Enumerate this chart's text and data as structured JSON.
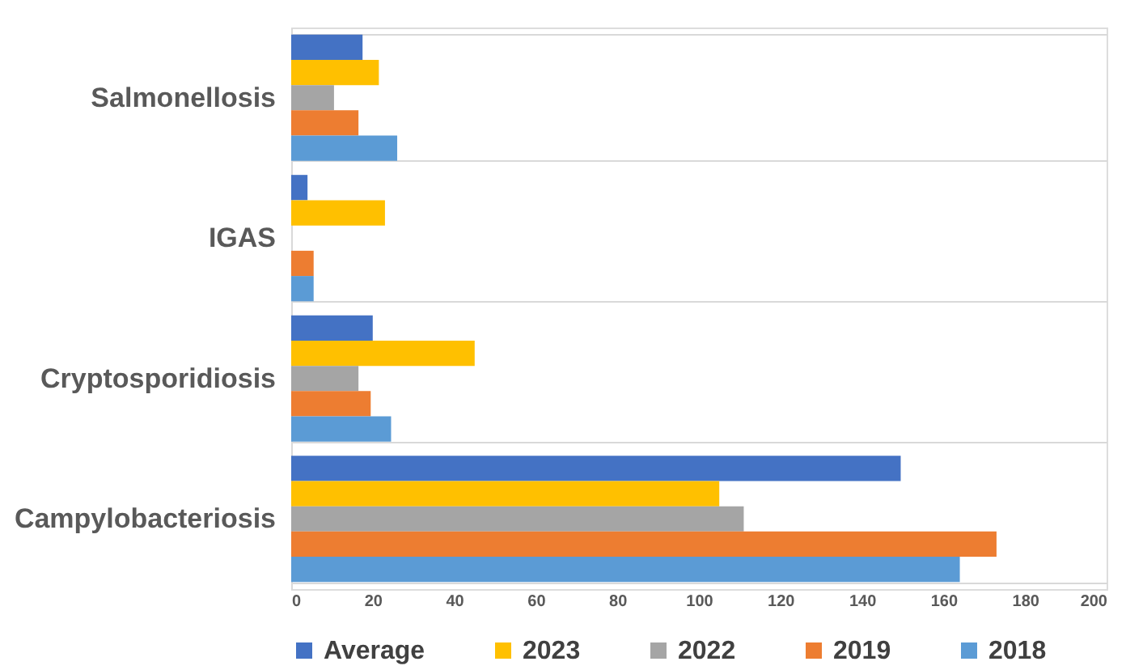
{
  "chart_data": {
    "type": "bar",
    "orientation": "horizontal",
    "categories": [
      "Salmonellosis",
      "IGAS",
      "Cryptosporidiosis",
      "Campylobacteriosis"
    ],
    "series": [
      {
        "name": "Average",
        "color": "#4472c4",
        "values": [
          17.5,
          4,
          20,
          149.5
        ]
      },
      {
        "name": "2023",
        "color": "#ffc000",
        "values": [
          21.5,
          23,
          45,
          105
        ]
      },
      {
        "name": "2022",
        "color": "#a5a5a5",
        "values": [
          10.5,
          0,
          16.5,
          111
        ]
      },
      {
        "name": "2019",
        "color": "#ed7d31",
        "values": [
          16.5,
          5.5,
          19.5,
          173
        ]
      },
      {
        "name": "2018",
        "color": "#5b9bd5",
        "values": [
          26,
          5.5,
          24.5,
          164
        ]
      }
    ],
    "xlim": [
      0,
      200
    ],
    "xticks": [
      0,
      20,
      40,
      60,
      80,
      100,
      120,
      140,
      160,
      180,
      200
    ],
    "grid": "y",
    "legend": "bottom"
  }
}
